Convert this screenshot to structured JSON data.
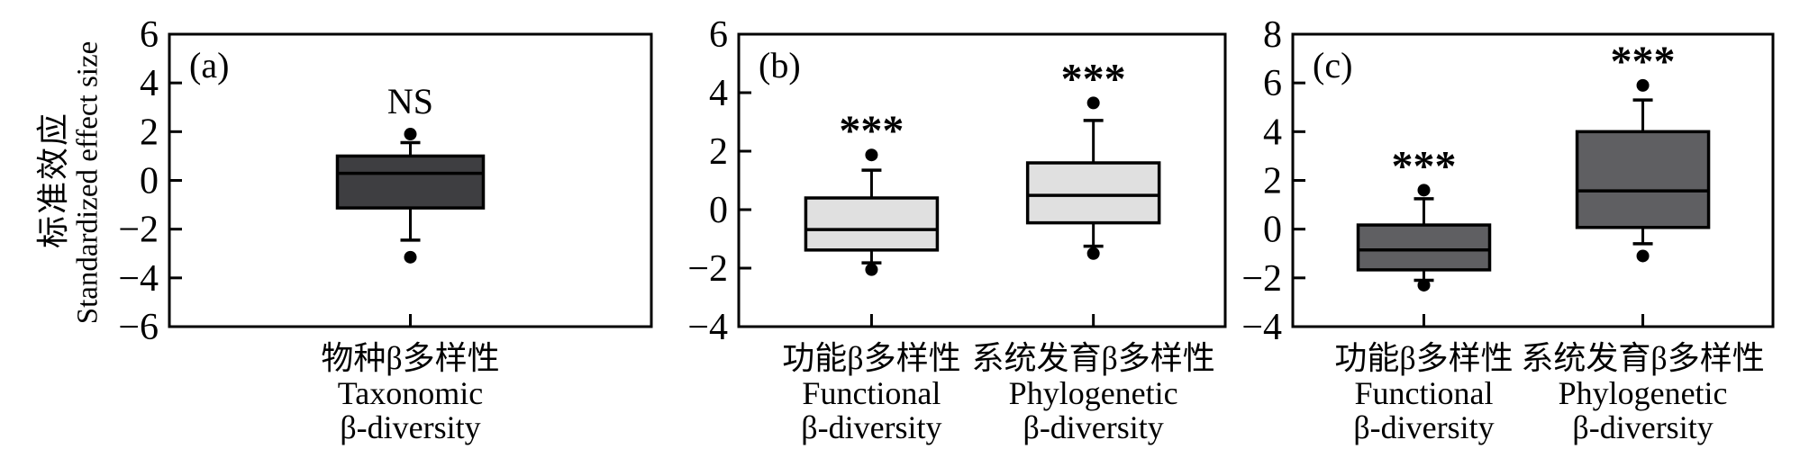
{
  "y_axis": {
    "label_cn": "标准效应",
    "label_en": "Standardized effect size"
  },
  "style": {
    "background": "#ffffff",
    "line_color": "#000000",
    "grid": false,
    "legend": null
  },
  "chart_data": [
    {
      "type": "box",
      "panel_label": "(a)",
      "ylim": [
        -6,
        6
      ],
      "yticks": [
        6,
        4,
        2,
        0,
        -2,
        -4,
        -6
      ],
      "box_fill": "#3e3e41",
      "categories": [
        {
          "label_cn": "物种β多样性",
          "label_en_line1": "Taxonomic",
          "label_en_line2": "β-diversity"
        }
      ],
      "series": [
        {
          "name": "Taxonomic β-diversity",
          "significance": "NS",
          "whisker_low": -2.45,
          "q1": -1.13,
          "median": 0.29,
          "q3": 1.0,
          "whisker_high": 1.55,
          "outliers": [
            1.9,
            -3.15
          ]
        }
      ]
    },
    {
      "type": "box",
      "panel_label": "(b)",
      "ylim": [
        -4,
        6
      ],
      "yticks": [
        6,
        4,
        2,
        0,
        -2,
        -4
      ],
      "box_fill": "#e0e0e0",
      "categories": [
        {
          "label_cn": "功能β多样性",
          "label_en_line1": "Functional",
          "label_en_line2": "β-diversity"
        },
        {
          "label_cn": "系统发育β多样性",
          "label_en_line1": "Phylogenetic",
          "label_en_line2": "β-diversity"
        }
      ],
      "series": [
        {
          "name": "Functional β-diversity",
          "significance": "***",
          "whisker_low": -1.82,
          "q1": -1.38,
          "median": -0.68,
          "q3": 0.4,
          "whisker_high": 1.35,
          "outliers": [
            1.87,
            -2.05
          ]
        },
        {
          "name": "Phylogenetic β-diversity",
          "significance": "***",
          "whisker_low": -1.25,
          "q1": -0.45,
          "median": 0.49,
          "q3": 1.6,
          "whisker_high": 3.05,
          "outliers": [
            3.65,
            -1.5
          ]
        }
      ]
    },
    {
      "type": "box",
      "panel_label": "(c)",
      "ylim": [
        -4,
        8
      ],
      "yticks": [
        8,
        6,
        4,
        2,
        0,
        -2,
        -4
      ],
      "box_fill": "#5f5f62",
      "categories": [
        {
          "label_cn": "功能β多样性",
          "label_en_line1": "Functional",
          "label_en_line2": "β-diversity"
        },
        {
          "label_cn": "系统发育β多样性",
          "label_en_line1": "Phylogenetic",
          "label_en_line2": "β-diversity"
        }
      ],
      "series": [
        {
          "name": "Functional β-diversity",
          "significance": "***",
          "whisker_low": -2.1,
          "q1": -1.67,
          "median": -0.85,
          "q3": 0.17,
          "whisker_high": 1.25,
          "outliers": [
            1.6,
            -2.3
          ]
        },
        {
          "name": "Phylogenetic β-diversity",
          "significance": "***",
          "whisker_low": -0.6,
          "q1": 0.07,
          "median": 1.57,
          "q3": 4.0,
          "whisker_high": 5.3,
          "outliers": [
            5.9,
            -1.1
          ]
        }
      ]
    }
  ]
}
